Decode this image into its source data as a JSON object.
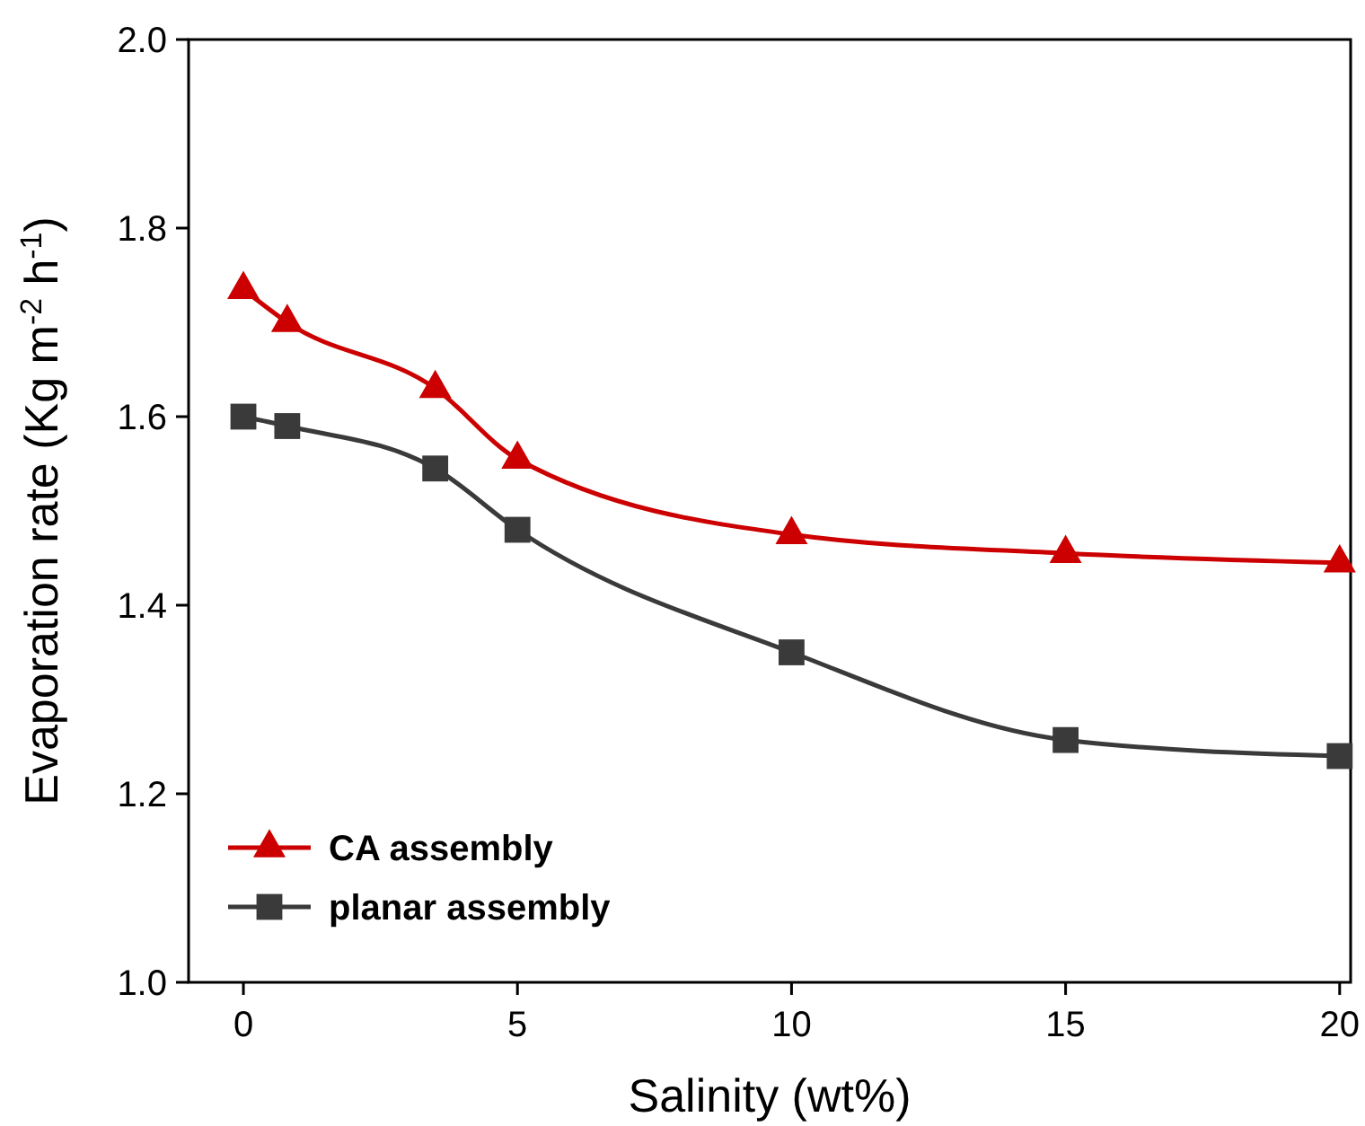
{
  "chart_data": {
    "type": "line",
    "xlabel": "Salinity (wt%)",
    "ylabel": "Evaporation rate (Kg m$^{-2}$ h$^{-1}$)",
    "xlim": [
      -1,
      20.2
    ],
    "xticks": [
      0,
      5,
      10,
      15,
      20
    ],
    "ylim": [
      1.0,
      2.0
    ],
    "yticks": [
      {
        "value": 1.0,
        "label": "1.0"
      },
      1.2,
      1.4,
      1.6,
      1.8,
      {
        "value": 2.0,
        "label": "2.0"
      }
    ],
    "grid": false,
    "legend": "bottom left",
    "series": [
      {
        "name": "CA assembly",
        "color": "#cc0000",
        "marker": "triangle",
        "x": [
          0,
          0.8,
          3.5,
          5,
          10,
          15,
          20
        ],
        "values": [
          1.735,
          1.7,
          1.63,
          1.555,
          1.475,
          1.455,
          1.445
        ]
      },
      {
        "name": "planar assembly",
        "color": "#3a3a3a",
        "marker": "square",
        "x": [
          0,
          0.8,
          3.5,
          5,
          10,
          15,
          20
        ],
        "values": [
          1.6,
          1.59,
          1.545,
          1.48,
          1.35,
          1.257,
          1.24
        ]
      }
    ]
  }
}
